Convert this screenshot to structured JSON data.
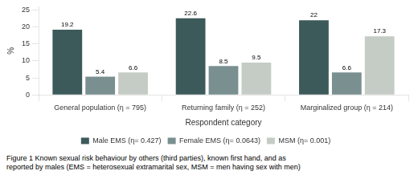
{
  "chart_data": {
    "type": "bar",
    "categories": [
      "General population (η = 795)",
      "Returning family (η = 252)",
      "Marginalized group (η = 214)"
    ],
    "series": [
      {
        "name": "Male EMS (η= 0.427)",
        "color": "#3d5a5a",
        "values": [
          19.2,
          22.6,
          22
        ]
      },
      {
        "name": "Female EMS (η= 0.0643)",
        "color": "#7a8f8f",
        "values": [
          5.4,
          8.5,
          6.6
        ]
      },
      {
        "name": "MSM (η= 0.001)",
        "color": "#c5ccc5",
        "values": [
          6.6,
          9.5,
          17.3
        ]
      }
    ],
    "x_label": "Respondent category",
    "y_label": "%",
    "ylim": [
      0,
      26
    ],
    "yticks": [
      0,
      5,
      10,
      15,
      20,
      25
    ],
    "grid": false,
    "legend": "bottom",
    "data_labels": true,
    "annotations": [
      "Figure 1 Known sexual risk behaviour by others (third parties), known first hand, and as",
      "reported by males (EMS = heterosexual extramarital sex, MSM = men having sex with men)"
    ]
  }
}
